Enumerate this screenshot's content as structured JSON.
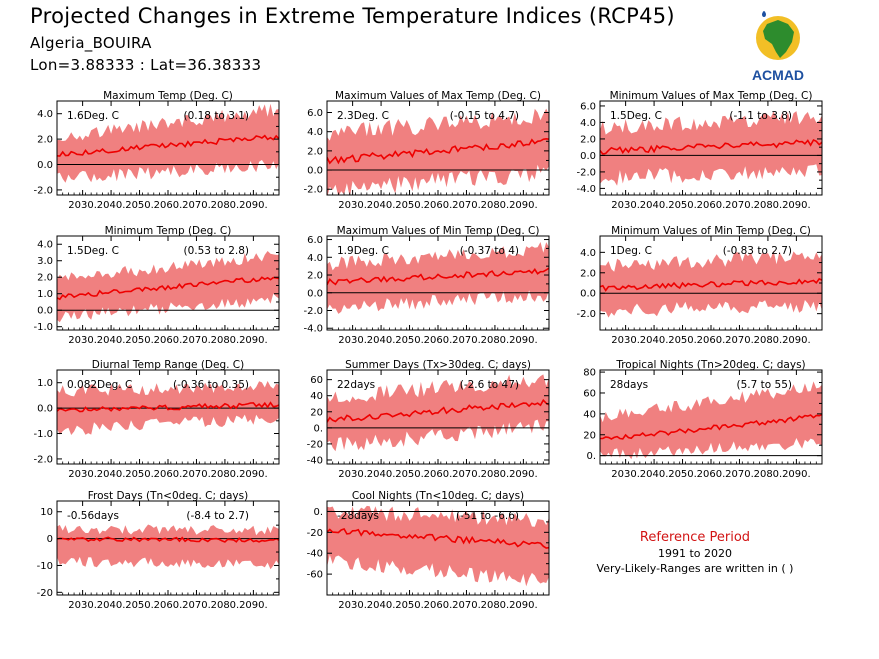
{
  "header": {
    "title": "Projected Changes in Extreme Temperature Indices (RCP45)",
    "location": "Algeria_BOUIRA",
    "coords": "Lon=3.88333 : Lat=36.38333",
    "logo_text": "ACMAD"
  },
  "reference": {
    "title": "Reference Period",
    "period": "1991 to 2020",
    "note": "Very-Likely-Ranges are written in ( )"
  },
  "colors": {
    "band": "#f08080",
    "median": "#ee0000",
    "zero_line": "#000000",
    "logo_blue": "#1e50a0",
    "logo_green": "#2d8c2d",
    "logo_yellow": "#f0b400"
  },
  "chart_data": [
    {
      "type": "area",
      "title": "Maximum Temp (Deg. C)",
      "change": "1.6Deg. C",
      "range": "(0.18 to 3.1)",
      "x_range": [
        2021,
        2099
      ],
      "xticks": [
        "2030.",
        "2040.",
        "2050.",
        "2060.",
        "2070.",
        "2080.",
        "2090."
      ],
      "ylim": [
        -2.4,
        5
      ],
      "yticks": [
        "-2.0",
        "0.0",
        "2.0",
        "4.0"
      ],
      "ytick_values": [
        -2,
        0,
        2,
        4
      ],
      "median_start": 0.8,
      "median_end": 2.2,
      "band_low_start": -1.0,
      "band_low_end": 0.2,
      "band_high_start": 2.0,
      "band_high_end": 4.2
    },
    {
      "type": "area",
      "title": "Maximum Values of Max Temp (Deg. C)",
      "change": "2.3Deg. C",
      "range": "(-0.15 to 4.7)",
      "x_range": [
        2021,
        2099
      ],
      "xticks": [
        "2030.",
        "2040.",
        "2050.",
        "2060.",
        "2070.",
        "2080.",
        "2090."
      ],
      "ylim": [
        -2.6,
        7.2
      ],
      "yticks": [
        "-2.0",
        "0.0",
        "2.0",
        "4.0",
        "6.0"
      ],
      "ytick_values": [
        -2,
        0,
        2,
        4,
        6
      ],
      "median_start": 1.0,
      "median_end": 3.0,
      "band_low_start": -1.8,
      "band_low_end": 0.0,
      "band_high_start": 3.5,
      "band_high_end": 5.5
    },
    {
      "type": "area",
      "title": "Minimum Values of Max Temp (Deg. C)",
      "change": "1.5Deg. C",
      "range": "(-1.1 to 3.8)",
      "x_range": [
        2021,
        2099
      ],
      "xticks": [
        "2030.",
        "2040.",
        "2050.",
        "2060.",
        "2070.",
        "2080.",
        "2090."
      ],
      "ylim": [
        -4.8,
        6.6
      ],
      "yticks": [
        "-4.0",
        "-2.0",
        "0.0",
        "2.0",
        "4.0",
        "6.0"
      ],
      "ytick_values": [
        -4,
        -2,
        0,
        2,
        4,
        6
      ],
      "median_start": 0.5,
      "median_end": 1.6,
      "band_low_start": -2.5,
      "band_low_end": -1.5,
      "band_high_start": 3.0,
      "band_high_end": 4.5
    },
    {
      "type": "area",
      "title": "Minimum Temp (Deg. C)",
      "change": "1.5Deg. C",
      "range": "(0.53 to 2.8)",
      "x_range": [
        2021,
        2099
      ],
      "xticks": [
        "2030.",
        "2040.",
        "2050.",
        "2060.",
        "2070.",
        "2080.",
        "2090."
      ],
      "ylim": [
        -1.2,
        4.5
      ],
      "yticks": [
        "-1.0",
        "0.0",
        "1.0",
        "2.0",
        "3.0",
        "4.0"
      ],
      "ytick_values": [
        -1,
        0,
        1,
        2,
        3,
        4
      ],
      "median_start": 0.8,
      "median_end": 2.0,
      "band_low_start": -0.3,
      "band_low_end": 0.8,
      "band_high_start": 1.8,
      "band_high_end": 3.2
    },
    {
      "type": "area",
      "title": "Maximum Values of Min Temp (Deg. C)",
      "change": "1.9Deg. C",
      "range": "(-0.37 to 4)",
      "x_range": [
        2021,
        2099
      ],
      "xticks": [
        "2030.",
        "2040.",
        "2050.",
        "2060.",
        "2070.",
        "2080.",
        "2090."
      ],
      "ylim": [
        -4.2,
        6.4
      ],
      "yticks": [
        "-4.0",
        "-2.0",
        "0.0",
        "2.0",
        "4.0",
        "6.0"
      ],
      "ytick_values": [
        -4,
        -2,
        0,
        2,
        4,
        6
      ],
      "median_start": 1.2,
      "median_end": 2.5,
      "band_low_start": -1.5,
      "band_low_end": 0.0,
      "band_high_start": 3.0,
      "band_high_end": 4.8
    },
    {
      "type": "area",
      "title": "Minimum Values of Min Temp (Deg. C)",
      "change": "1Deg. C",
      "range": "(-0.83 to 2.7)",
      "x_range": [
        2021,
        2099
      ],
      "xticks": [
        "2030.",
        "2040.",
        "2050.",
        "2060.",
        "2070.",
        "2080.",
        "2090."
      ],
      "ylim": [
        -3.6,
        5.6
      ],
      "yticks": [
        "-2.0",
        "0.0",
        "2.0",
        "4.0"
      ],
      "ytick_values": [
        -2,
        0,
        2,
        4
      ],
      "median_start": 0.5,
      "median_end": 1.2,
      "band_low_start": -1.5,
      "band_low_end": -1.0,
      "band_high_start": 2.5,
      "band_high_end": 3.5
    },
    {
      "type": "area",
      "title": "Diurnal Temp Range (Deg. C)",
      "change": "0.082Deg. C",
      "range": "(-0.36 to 0.35)",
      "x_range": [
        2021,
        2099
      ],
      "xticks": [
        "2030.",
        "2040.",
        "2050.",
        "2060.",
        "2070.",
        "2080.",
        "2090."
      ],
      "ylim": [
        -2.2,
        1.5
      ],
      "yticks": [
        "-2.0",
        "-1.0",
        "0.0",
        "1.0"
      ],
      "ytick_values": [
        -2,
        -1,
        0,
        1
      ],
      "median_start": -0.1,
      "median_end": 0.15,
      "band_low_start": -0.8,
      "band_low_end": -0.3,
      "band_high_start": 0.6,
      "band_high_end": 0.8
    },
    {
      "type": "area",
      "title": "Summer Days (Tx>30deg. C; days)",
      "change": "22days",
      "range": "(-2.6 to 47)",
      "x_range": [
        2021,
        2099
      ],
      "xticks": [
        "2030.",
        "2040.",
        "2050.",
        "2060.",
        "2070.",
        "2080.",
        "2090."
      ],
      "ylim": [
        -45,
        72
      ],
      "yticks": [
        "-40",
        "-20",
        "0.",
        "20",
        "40",
        "60"
      ],
      "ytick_values": [
        -40,
        -20,
        0,
        20,
        40,
        60
      ],
      "median_start": 10,
      "median_end": 32,
      "band_low_start": -20,
      "band_low_end": 5,
      "band_high_start": 35,
      "band_high_end": 58
    },
    {
      "type": "area",
      "title": "Tropical Nights (Tn>20deg. C; days)",
      "change": "28days",
      "range": "(5.7 to 55)",
      "x_range": [
        2021,
        2099
      ],
      "xticks": [
        "2030.",
        "2040.",
        "2050.",
        "2060.",
        "2070.",
        "2080.",
        "2090."
      ],
      "ylim": [
        -8,
        82
      ],
      "yticks": [
        "0.",
        "20",
        "40",
        "60",
        "80"
      ],
      "ytick_values": [
        0,
        20,
        40,
        60,
        80
      ],
      "median_start": 15,
      "median_end": 38,
      "band_low_start": 2,
      "band_low_end": 15,
      "band_high_start": 35,
      "band_high_end": 65
    },
    {
      "type": "area",
      "title": "Frost Days (Tn<0deg. C; days)",
      "change": "-0.56days",
      "range": "(-8.4 to 2.7)",
      "x_range": [
        2021,
        2099
      ],
      "xticks": [
        "2030.",
        "2040.",
        "2050.",
        "2060.",
        "2070.",
        "2080.",
        "2090."
      ],
      "ylim": [
        -21,
        14
      ],
      "yticks": [
        "-20",
        "-10",
        "0",
        "10"
      ],
      "ytick_values": [
        -20,
        -10,
        0,
        10
      ],
      "median_start": -0.2,
      "median_end": -0.6,
      "band_low_start": -8,
      "band_low_end": -9,
      "band_high_start": 3,
      "band_high_end": 2.5
    },
    {
      "type": "area",
      "title": "Cool Nights (Tn<10deg. C; days)",
      "change": "-28days",
      "range": "(-51 to -6.6)",
      "x_range": [
        2021,
        2099
      ],
      "xticks": [
        "2030.",
        "2040.",
        "2050.",
        "2060.",
        "2070.",
        "2080.",
        "2090."
      ],
      "ylim": [
        -80,
        10
      ],
      "yticks": [
        "-60",
        "-40",
        "-20",
        "0."
      ],
      "ytick_values": [
        -60,
        -40,
        -20,
        0
      ],
      "median_start": -18,
      "median_end": -33,
      "band_low_start": -45,
      "band_low_end": -65,
      "band_high_start": -2,
      "band_high_end": -10
    }
  ]
}
